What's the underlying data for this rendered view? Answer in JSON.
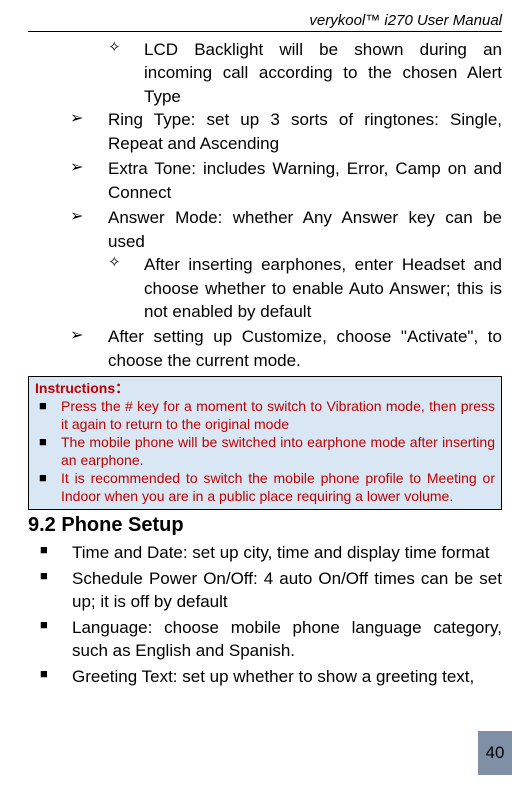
{
  "header": "verykool™ i270 User Manual",
  "firstDiamond": "LCD Backlight will be shown during an incoming call according to the chosen Alert Type",
  "arrows": [
    {
      "text": "Ring Type: set up 3 sorts of ringtones: Single, Repeat and Ascending"
    },
    {
      "text": "Extra Tone: includes Warning, Error, Camp on and Connect"
    },
    {
      "text": "Answer Mode: whether Any Answer key can be used",
      "sub": [
        "After inserting earphones, enter Headset and choose whether to enable Auto Answer; this is not enabled by default"
      ]
    },
    {
      "text": "After setting up Customize, choose \"Activate\", to choose the current mode."
    }
  ],
  "instructions": {
    "title": "Instructions：",
    "items": [
      "Press the # key for a moment to switch to Vibration mode, then press it again to return to the original mode",
      "The mobile phone will be switched into earphone mode after inserting an earphone.",
      "It is recommended to switch the mobile phone profile to Meeting or Indoor when you are in a public place requiring a lower volume."
    ]
  },
  "section": {
    "heading": "9.2 Phone Setup",
    "items": [
      "Time and Date: set up city, time and display time format",
      "Schedule Power On/Off: 4 auto On/Off times can be set up; it is off by default",
      "Language: choose mobile phone language category, such as English and Spanish.",
      " Greeting Text: set up whether to show a greeting text,"
    ]
  },
  "pageNumber": "40",
  "colors": {
    "instructionsBg": "#d9e7f5",
    "instructionsText": "#c00000",
    "pageNumBg": "#7f8fa6"
  }
}
